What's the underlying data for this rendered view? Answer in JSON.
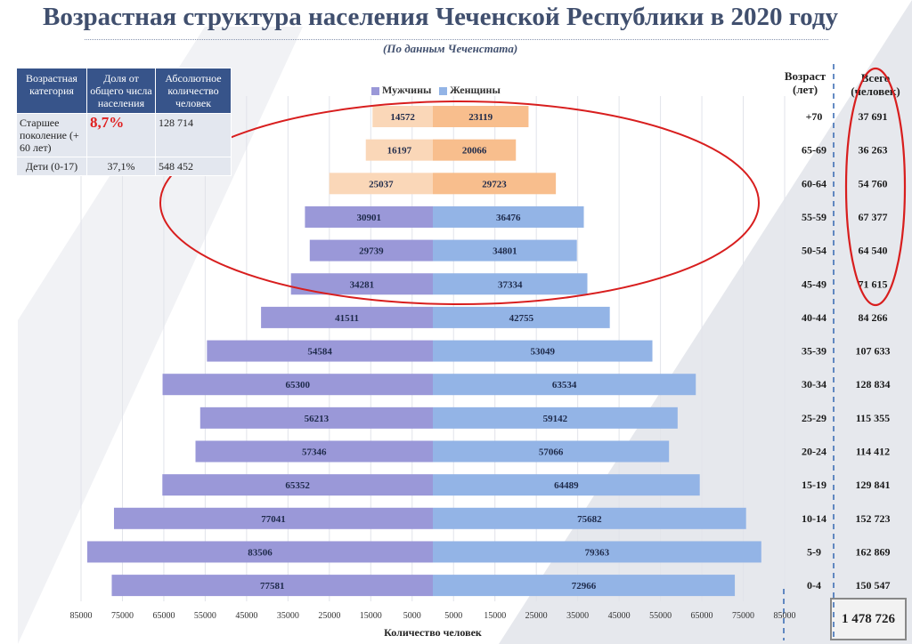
{
  "title": "Возрастная структура населения Чеченской Республики в 2020 году",
  "subtitle": "(По данным Чеченстата)",
  "table": {
    "headers": [
      "Возрастная категория",
      "Доля от общего числа населения",
      "Абсолютное количество человек"
    ],
    "rows": [
      {
        "category": "Старшее поколение (+ 60 лет)",
        "share": "8,7%",
        "count": "128 714"
      },
      {
        "category": "Дети (0-17)",
        "share": "37,1%",
        "count": "548 452"
      }
    ]
  },
  "age_header": "Возраст (лет)",
  "total_header": "Всего (человек)",
  "grand_total": "1 478 726",
  "colors": {
    "male": "#9a98d8",
    "female": "#93b4e6",
    "male_highlight": "#fad7b8",
    "female_highlight": "#f8be8d",
    "title": "#404f6e",
    "table_header": "#37548a",
    "ellipse": "#d81e1e",
    "divider": "#3f6fb5"
  },
  "chart_data": {
    "type": "bar",
    "orientation": "horizontal",
    "style": "population-pyramid",
    "categories": [
      "+70",
      "65-69",
      "60-64",
      "55-59",
      "50-54",
      "45-49",
      "40-44",
      "35-39",
      "30-34",
      "25-29",
      "20-24",
      "15-19",
      "10-14",
      "5-9",
      "0-4"
    ],
    "series": [
      {
        "name": "Мужчины",
        "values": [
          14572,
          16197,
          25037,
          30901,
          29739,
          34281,
          41511,
          54584,
          65300,
          56213,
          57346,
          65352,
          77041,
          83506,
          77581
        ]
      },
      {
        "name": "Женщины",
        "values": [
          23119,
          20066,
          29723,
          36476,
          34801,
          37334,
          42755,
          53049,
          63534,
          59142,
          57066,
          64489,
          75682,
          79363,
          72966
        ]
      }
    ],
    "totals": [
      "37 691",
      "36 263",
      "54 760",
      "67 377",
      "64 540",
      "71 615",
      "84 266",
      "107 633",
      "128 834",
      "115 355",
      "114 412",
      "129 841",
      "152 723",
      "162 869",
      "150 547"
    ],
    "highlighted_categories": [
      "+70",
      "65-69",
      "60-64"
    ],
    "xlabel": "Количество человек",
    "x_ticks": [
      "85000",
      "75000",
      "65000",
      "55000",
      "45000",
      "35000",
      "25000",
      "15000",
      "5000",
      "5000",
      "15000",
      "25000",
      "35000",
      "45000",
      "55000",
      "65000",
      "75000",
      "85000"
    ],
    "xlim": [
      -85000,
      85000
    ],
    "grid": true,
    "legend_position": "top"
  }
}
